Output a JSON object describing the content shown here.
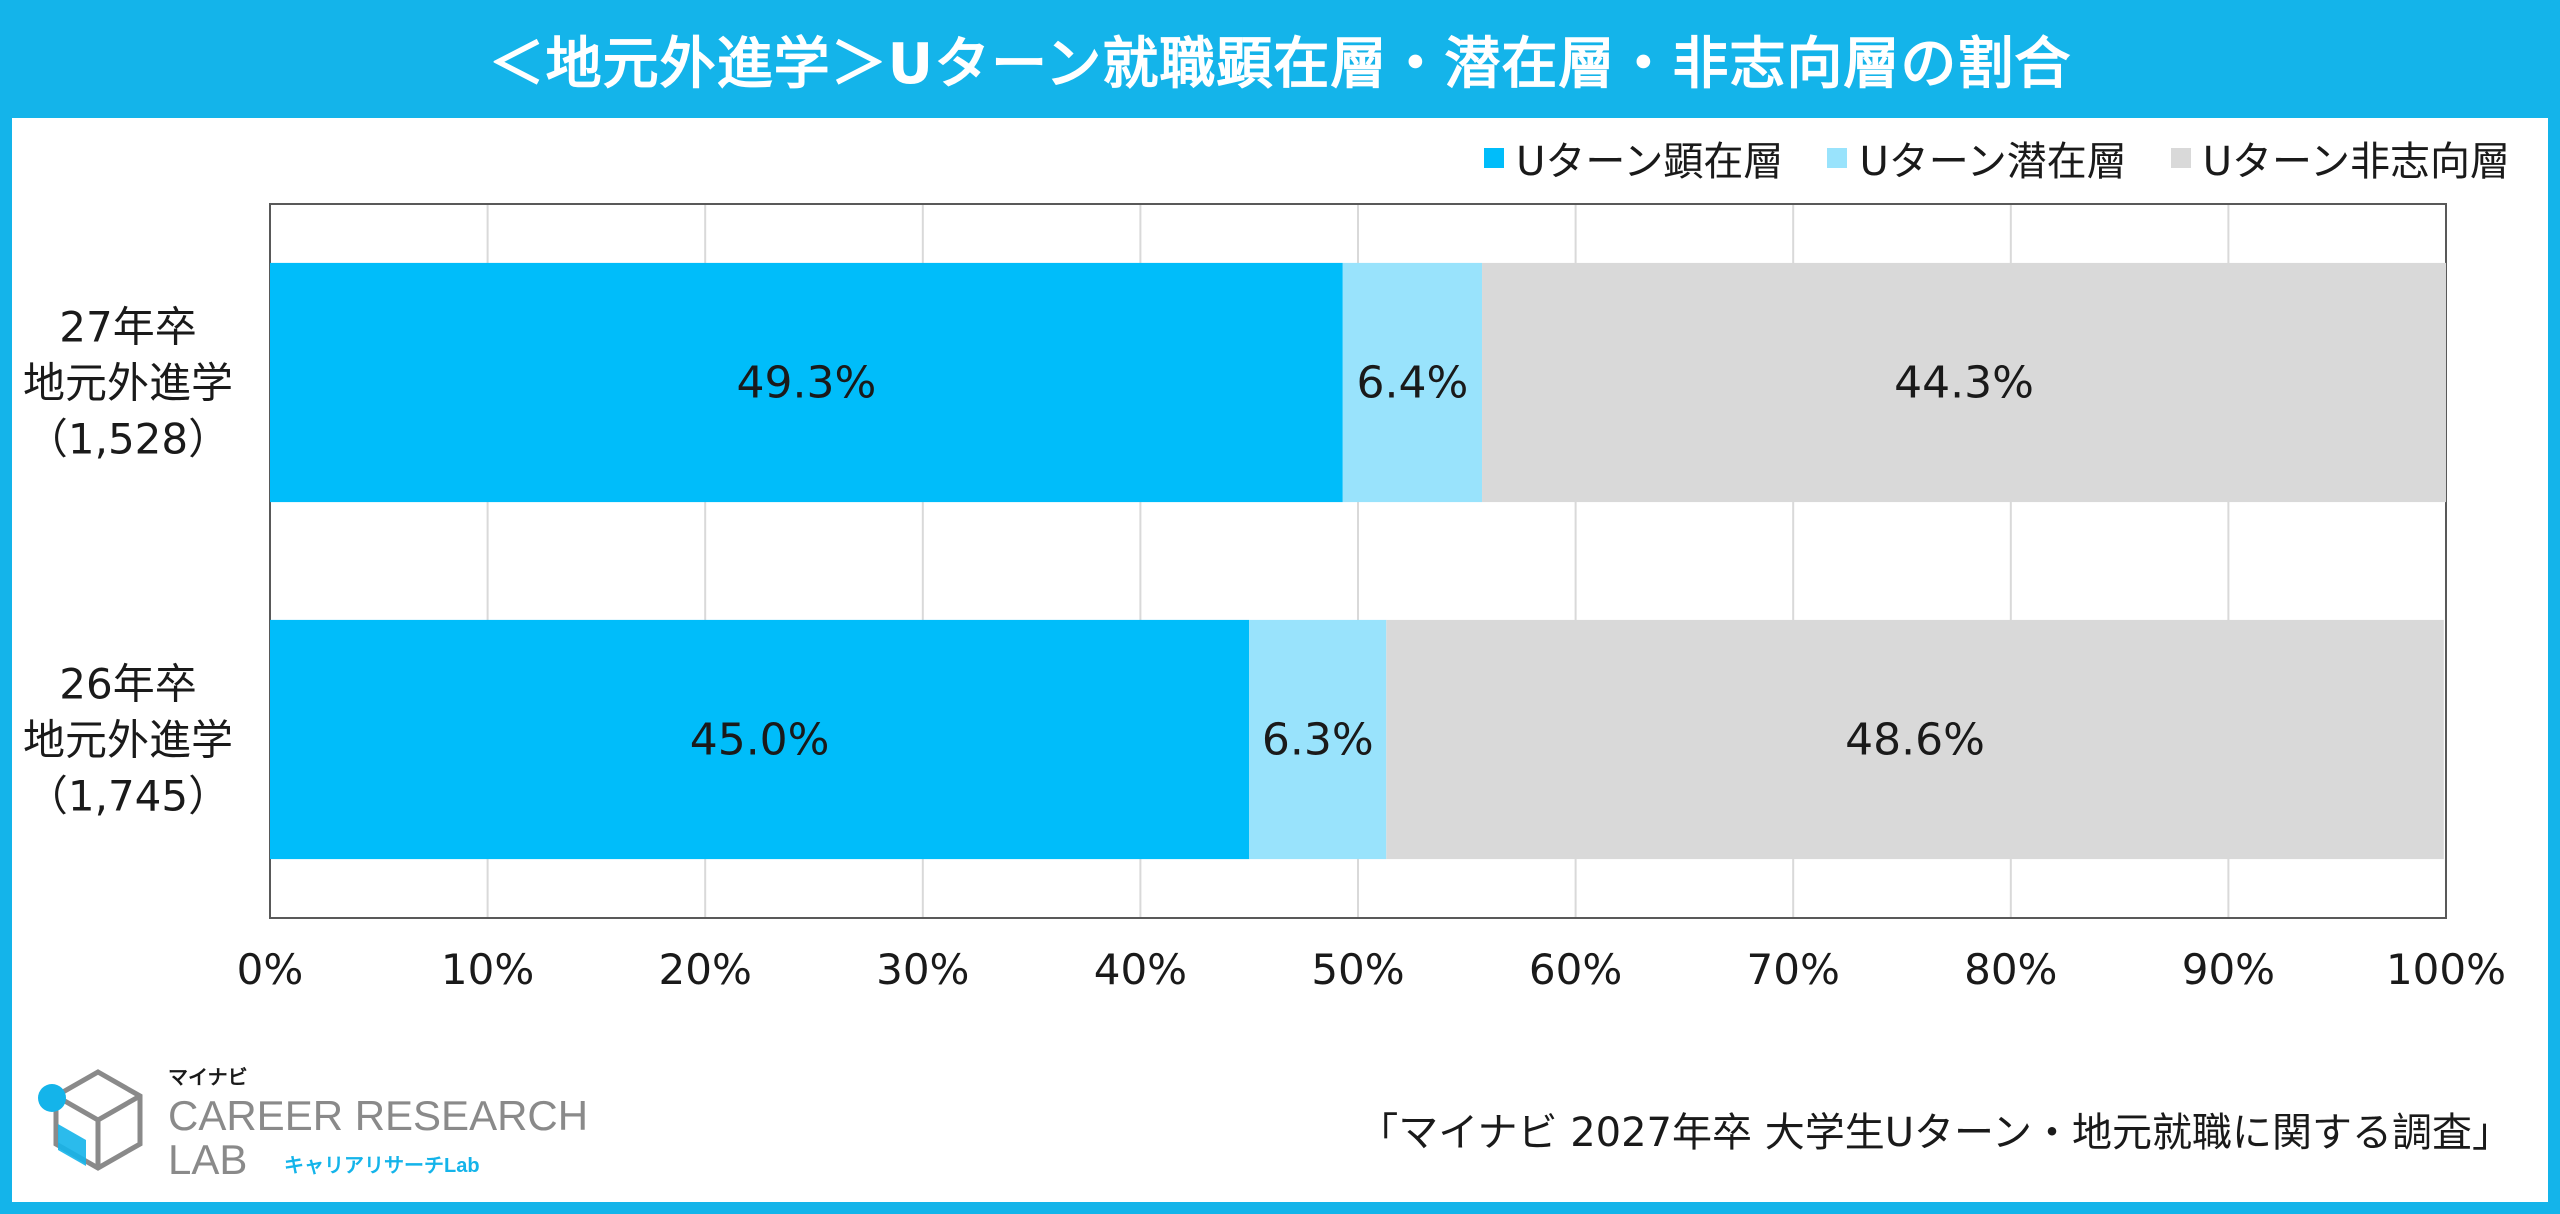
{
  "title": "＜地元外進学＞Uターン就職顕在層・潜在層・非志向層の割合",
  "source_note": "「マイナビ 2027年卒 大学生Uターン・地元就職に関する調査」",
  "logo": {
    "brand_jp": "マイナビ",
    "line1": "CAREER RESEARCH",
    "line2": "LAB",
    "sub": "キャリアリサーチLab"
  },
  "colors": {
    "header": "#14b4ea",
    "series": [
      "#00bdfa",
      "#99e3fc",
      "#d9d9d9"
    ],
    "grid": "#d9d9d9",
    "axis": "#595959"
  },
  "chart_data": {
    "type": "bar",
    "orientation": "horizontal",
    "stacked": true,
    "percent": true,
    "categories": [
      {
        "lines": [
          "27年卒",
          "地元外進学",
          "（1,528）"
        ]
      },
      {
        "lines": [
          "26年卒",
          "地元外進学",
          "（1,745）"
        ]
      }
    ],
    "series": [
      {
        "name": "Uターン顕在層",
        "values": [
          49.3,
          45.0
        ],
        "labels": [
          "49.3%",
          "45.0%"
        ]
      },
      {
        "name": "Uターン潜在層",
        "values": [
          6.4,
          6.3
        ],
        "labels": [
          "6.4%",
          "6.3%"
        ]
      },
      {
        "name": "Uターン非志向層",
        "values": [
          44.3,
          48.6
        ],
        "labels": [
          "44.3%",
          "48.6%"
        ]
      }
    ],
    "xlim": [
      0,
      100
    ],
    "xticks": [
      "0%",
      "10%",
      "20%",
      "30%",
      "40%",
      "50%",
      "60%",
      "70%",
      "80%",
      "90%",
      "100%"
    ],
    "grid": true,
    "legend": "top-right"
  }
}
